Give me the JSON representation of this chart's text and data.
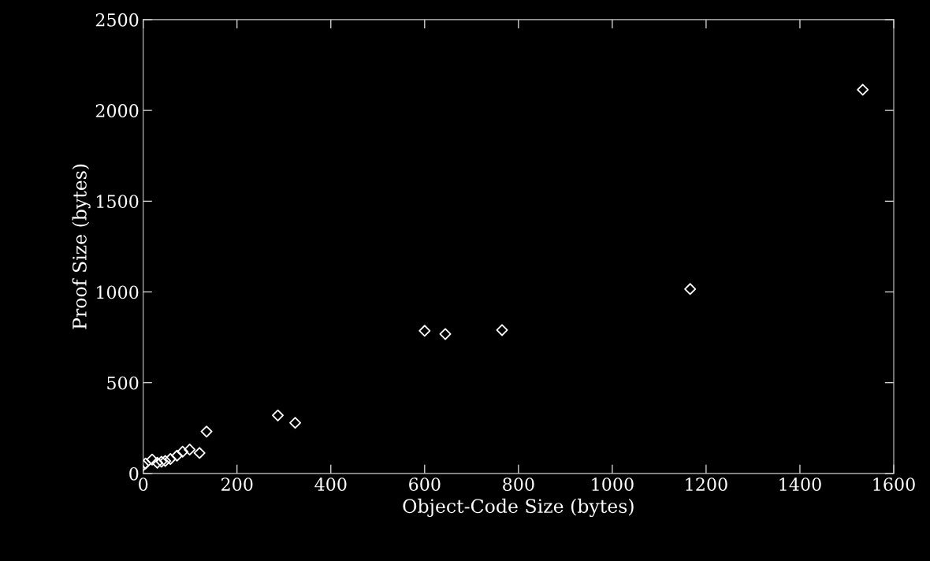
{
  "chart_data": {
    "type": "scatter",
    "xlabel": "Object-Code Size (bytes)",
    "ylabel": "Proof Size (bytes)",
    "x": [
      0,
      5,
      19,
      30,
      39,
      47,
      58,
      72,
      84,
      99,
      120,
      135,
      287,
      324,
      600,
      644,
      765,
      1166,
      1534
    ],
    "series": [
      {
        "color": "#ffffff",
        "values": [
          45,
          55,
          77,
          59,
          65,
          69,
          80,
          98,
          120,
          132,
          113,
          231,
          320,
          279,
          786,
          768,
          790,
          1016,
          2114
        ]
      }
    ],
    "xlim": [
      0,
      1600
    ],
    "ylim": [
      0,
      2500
    ],
    "xticks": [
      0,
      200,
      400,
      600,
      800,
      1000,
      1200,
      1400,
      1600
    ],
    "yticks": [
      0,
      500,
      1000,
      1500,
      2000,
      2500
    ],
    "marker": "diamond",
    "grid": false
  }
}
